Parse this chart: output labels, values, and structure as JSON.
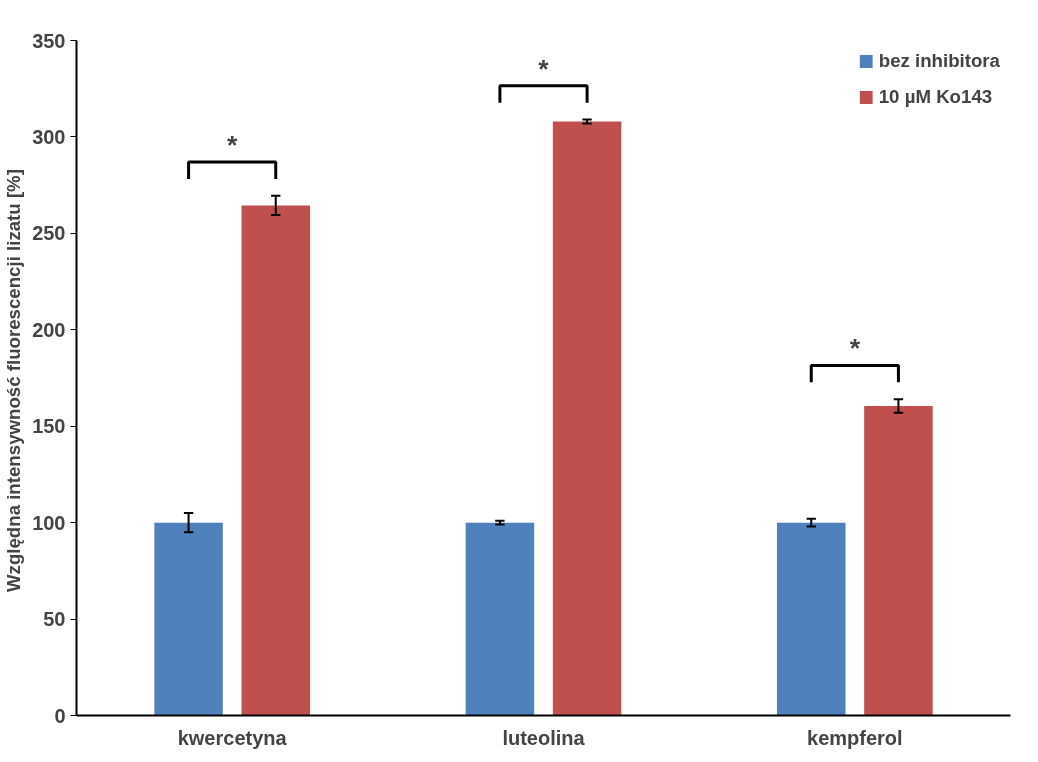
{
  "chart_data": {
    "type": "bar",
    "ylabel": "Względna intensywność fluorescencji lizatu  [%]",
    "categories": [
      "kwercetyna",
      "luteolina",
      "kempferol"
    ],
    "series": [
      {
        "name": "bez inhibitora",
        "color": "#4f81bd",
        "values": [
          100,
          100,
          100
        ],
        "errors": [
          5,
          1,
          2
        ]
      },
      {
        "name": "10 µM Ko143",
        "color": "#c0504d",
        "values": [
          264.5,
          308,
          160.5
        ],
        "errors": [
          5,
          1,
          3.5
        ]
      }
    ],
    "ylim": [
      0,
      350
    ],
    "yticks": [
      0,
      50,
      100,
      150,
      200,
      250,
      300,
      350
    ],
    "annotations": [
      "*",
      "*",
      "*"
    ],
    "grid": false,
    "legend": "top right"
  }
}
